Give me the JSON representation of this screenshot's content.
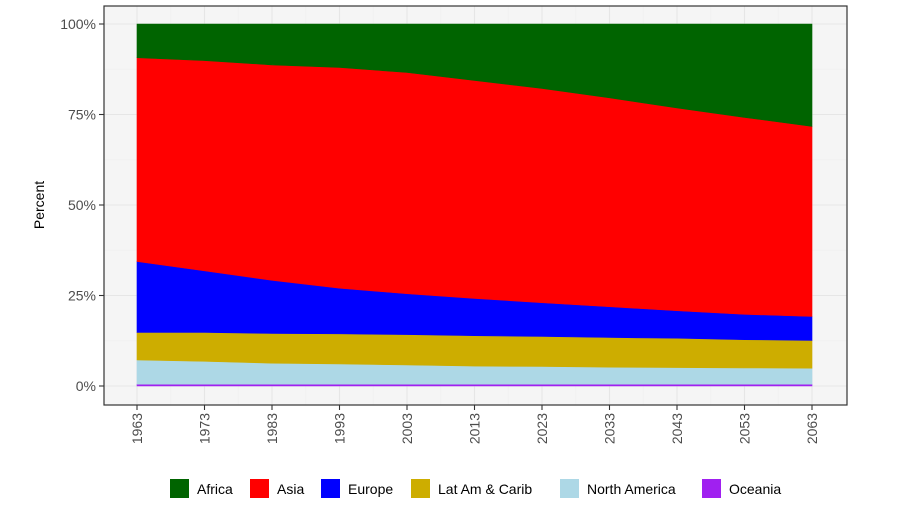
{
  "chart_data": {
    "type": "area",
    "stacked": "percent",
    "ylabel": "Percent",
    "xlabel": "",
    "ylim": [
      0,
      100
    ],
    "y_ticks": [
      0,
      25,
      50,
      75,
      100
    ],
    "y_tick_labels": [
      "0%",
      "25%",
      "50%",
      "75%",
      "100%"
    ],
    "x_ticks": [
      1963,
      1973,
      1983,
      1993,
      2003,
      2013,
      2023,
      2033,
      2043,
      2053,
      2063
    ],
    "xlim": [
      1963,
      2063
    ],
    "grid": true,
    "legend_position": "bottom",
    "x": [
      1963,
      1973,
      1983,
      1993,
      2003,
      2013,
      2023,
      2033,
      2043,
      2053,
      2063
    ],
    "series": [
      {
        "name": "Oceania",
        "color": "#a020f0",
        "values": [
          0.5,
          0.5,
          0.5,
          0.5,
          0.5,
          0.5,
          0.5,
          0.5,
          0.5,
          0.5,
          0.5
        ]
      },
      {
        "name": "North America",
        "color": "#add8e6",
        "values": [
          6.7,
          6.3,
          5.8,
          5.6,
          5.3,
          5.0,
          4.9,
          4.7,
          4.6,
          4.5,
          4.4
        ]
      },
      {
        "name": "Lat Am & Carib",
        "color": "#cdad00",
        "values": [
          7.6,
          8.0,
          8.2,
          8.3,
          8.4,
          8.4,
          8.3,
          8.2,
          8.1,
          7.8,
          7.7
        ]
      },
      {
        "name": "Europe",
        "color": "#0000ff",
        "values": [
          19.6,
          17.0,
          14.7,
          12.6,
          11.3,
          10.3,
          9.3,
          8.5,
          7.6,
          7.0,
          6.6
        ]
      },
      {
        "name": "Asia",
        "color": "#ff0000",
        "values": [
          56.3,
          58.1,
          59.5,
          61.0,
          61.1,
          60.2,
          59.2,
          57.7,
          56.0,
          54.4,
          52.5
        ]
      },
      {
        "name": "Africa",
        "color": "#006400",
        "values": [
          9.3,
          10.1,
          11.3,
          12.0,
          13.4,
          15.6,
          17.8,
          20.4,
          23.2,
          25.8,
          28.3
        ]
      }
    ],
    "legend": [
      {
        "name": "Africa",
        "color": "#006400"
      },
      {
        "name": "Asia",
        "color": "#ff0000"
      },
      {
        "name": "Europe",
        "color": "#0000ff"
      },
      {
        "name": "Lat Am & Carib",
        "color": "#cdad00"
      },
      {
        "name": "North America",
        "color": "#add8e6"
      },
      {
        "name": "Oceania",
        "color": "#a020f0"
      }
    ],
    "colors": {
      "panel_background": "#f5f5f5",
      "grid_major": "#e6e6e6",
      "grid_minor": "#f0f0f0",
      "panel_border": "#333333"
    }
  }
}
